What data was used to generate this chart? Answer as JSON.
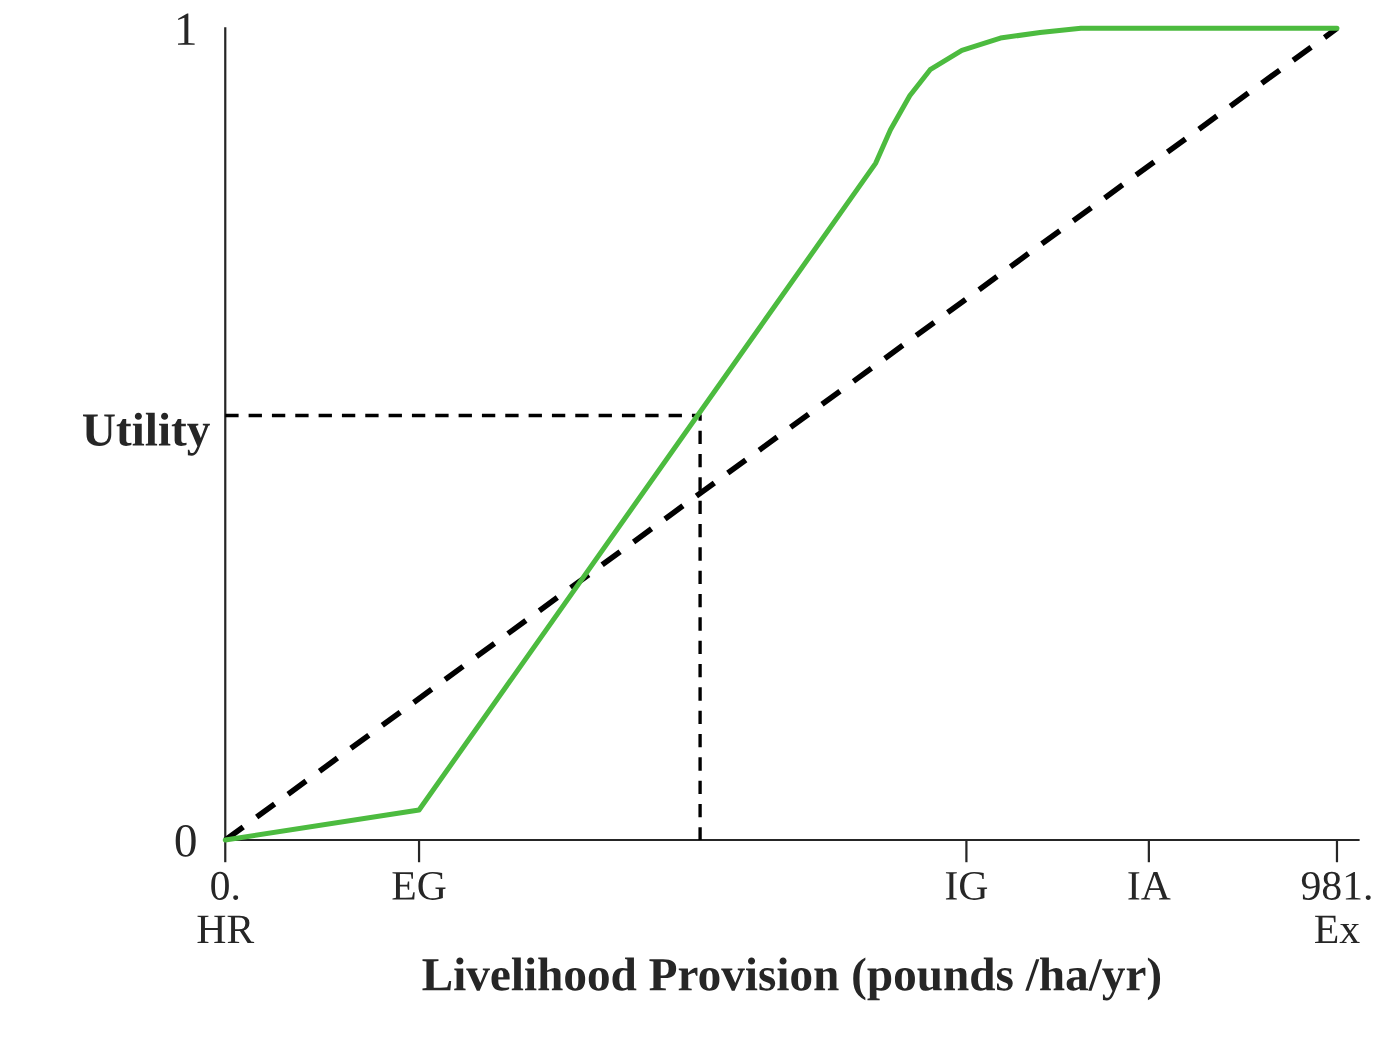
{
  "chart_data": {
    "type": "line",
    "xlabel": "Livelihood Provision (pounds /ha/yr)",
    "ylabel": "Utility",
    "xlim": [
      0,
      1000
    ],
    "ylim": [
      0,
      1
    ],
    "xticks": [
      {
        "value": 0,
        "label": "0.\nHR"
      },
      {
        "value": 171,
        "label": "EG"
      },
      {
        "value": 654,
        "label": "IG"
      },
      {
        "value": 815,
        "label": "IA"
      },
      {
        "value": 981,
        "label": "981.\nEx"
      }
    ],
    "yticks": [
      0,
      1
    ],
    "grid": false,
    "legend": false,
    "series": [
      {
        "color": "#4cbb3f",
        "line_style": "solid",
        "x": [
          0,
          171,
          574,
          587,
          604,
          622,
          650,
          684,
          719,
          755,
          981
        ],
        "values": [
          0,
          0.037,
          0.834,
          0.875,
          0.917,
          0.949,
          0.973,
          0.988,
          0.995,
          1.0,
          1.0
        ]
      },
      {
        "color": "#000000",
        "line_style": "dashed",
        "x": [
          0,
          981
        ],
        "values": [
          0,
          1
        ]
      },
      {
        "color": "#000000",
        "line_style": "dashed",
        "x": [
          0,
          419,
          419
        ],
        "values": [
          0.523,
          0.523,
          0
        ]
      }
    ]
  }
}
